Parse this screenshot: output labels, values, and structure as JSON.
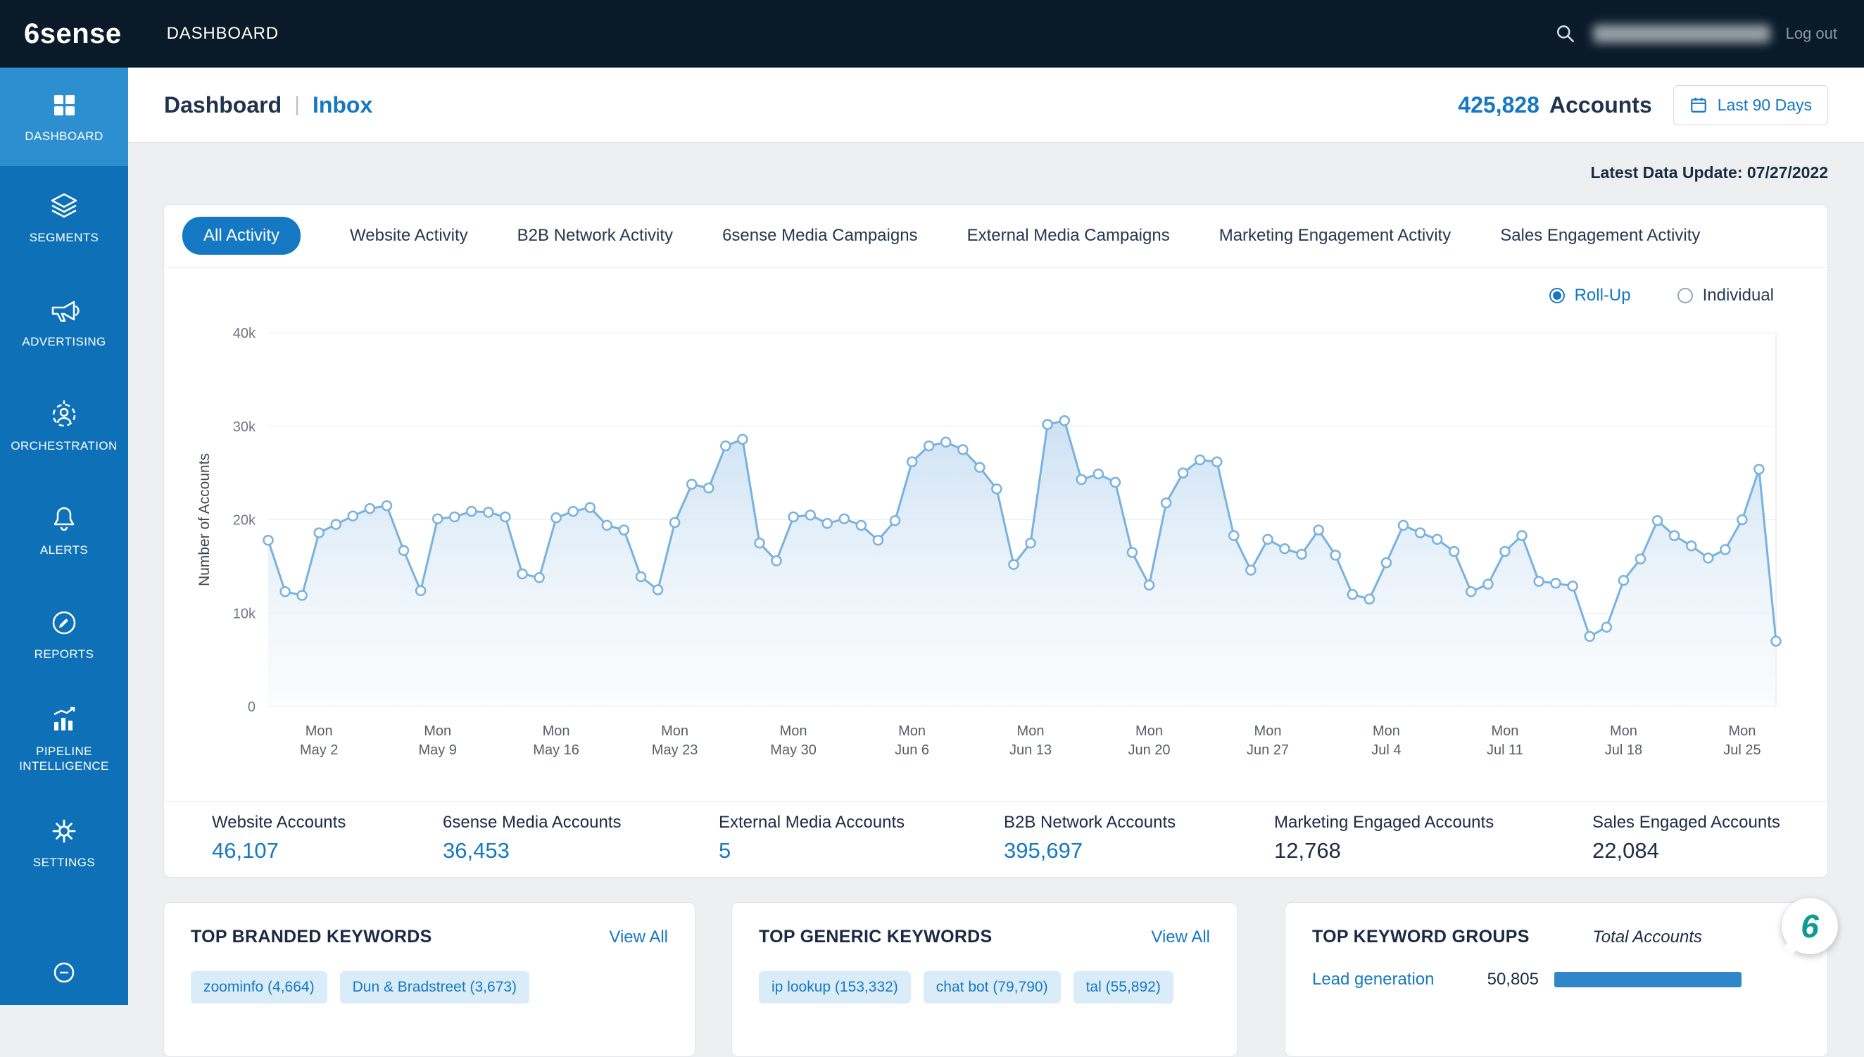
{
  "topbar": {
    "logo": "6sense",
    "nav_label": "DASHBOARD",
    "logout": "Log out"
  },
  "sidebar": {
    "items": [
      {
        "label": "DASHBOARD",
        "active": true
      },
      {
        "label": "SEGMENTS"
      },
      {
        "label": "ADVERTISING"
      },
      {
        "label": "ORCHESTRATION"
      },
      {
        "label": "ALERTS"
      },
      {
        "label": "REPORTS"
      },
      {
        "label": "PIPELINE INTELLIGENCE"
      },
      {
        "label": "SETTINGS"
      }
    ]
  },
  "header": {
    "title": "Dashboard",
    "divider": "|",
    "inbox_link": "Inbox",
    "accounts_count": "425,828",
    "accounts_label": "Accounts",
    "date_range_button": "Last 90 Days",
    "latest_update": "Latest Data Update: 07/27/2022"
  },
  "activity_card": {
    "tabs": [
      {
        "label": "All Activity",
        "active": true
      },
      {
        "label": "Website Activity"
      },
      {
        "label": "B2B Network Activity"
      },
      {
        "label": "6sense Media Campaigns"
      },
      {
        "label": "External Media Campaigns"
      },
      {
        "label": "Marketing Engagement Activity"
      },
      {
        "label": "Sales Engagement Activity"
      }
    ],
    "view_toggle": {
      "rollup": "Roll-Up",
      "individual": "Individual",
      "selected": "Roll-Up"
    },
    "stats": [
      {
        "label": "Website Accounts",
        "value": "46,107",
        "link": true
      },
      {
        "label": "6sense Media Accounts",
        "value": "36,453",
        "link": true
      },
      {
        "label": "External Media Accounts",
        "value": "5",
        "link": true
      },
      {
        "label": "B2B Network Accounts",
        "value": "395,697",
        "link": true
      },
      {
        "label": "Marketing Engaged Accounts",
        "value": "12,768",
        "link": false
      },
      {
        "label": "Sales Engaged Accounts",
        "value": "22,084",
        "link": false
      }
    ]
  },
  "chart_data": {
    "type": "area",
    "ylabel": "Number of Accounts",
    "ylim": [
      0,
      40000
    ],
    "y_ticks": [
      "0",
      "10k",
      "20k",
      "30k",
      "40k"
    ],
    "y_tick_values": [
      0,
      10000,
      20000,
      30000,
      40000
    ],
    "x_start_date": "2022-04-29",
    "x_step_days": 1,
    "x_tick_indices": [
      3,
      10,
      17,
      24,
      31,
      38,
      45,
      52,
      59,
      66,
      73,
      80,
      87
    ],
    "x_tick_labels": [
      [
        "Mon",
        "May 2"
      ],
      [
        "Mon",
        "May 9"
      ],
      [
        "Mon",
        "May 16"
      ],
      [
        "Mon",
        "May 23"
      ],
      [
        "Mon",
        "May 30"
      ],
      [
        "Mon",
        "Jun 6"
      ],
      [
        "Mon",
        "Jun 13"
      ],
      [
        "Mon",
        "Jun 20"
      ],
      [
        "Mon",
        "Jun 27"
      ],
      [
        "Mon",
        "Jul 4"
      ],
      [
        "Mon",
        "Jul 11"
      ],
      [
        "Mon",
        "Jul 18"
      ],
      [
        "Mon",
        "Jul 25"
      ]
    ],
    "grid": true,
    "legend": "none",
    "values": [
      17800,
      12300,
      11900,
      18600,
      19500,
      20400,
      21200,
      21500,
      16700,
      12400,
      20100,
      20300,
      20900,
      20800,
      20300,
      14200,
      13800,
      20200,
      20900,
      21300,
      19400,
      18900,
      13900,
      12500,
      19700,
      23800,
      23400,
      27900,
      28600,
      17500,
      15600,
      20300,
      20500,
      19600,
      20100,
      19400,
      17800,
      19900,
      26200,
      27900,
      28300,
      27500,
      25600,
      23300,
      15200,
      17500,
      30200,
      30600,
      24300,
      24900,
      24000,
      16500,
      13000,
      21800,
      25000,
      26400,
      26200,
      18300,
      14600,
      17900,
      16900,
      16300,
      18900,
      16200,
      12000,
      11500,
      15400,
      19400,
      18600,
      17900,
      16600,
      12300,
      13100,
      16600,
      18300,
      13400,
      13200,
      12900,
      7500,
      8500,
      13500,
      15800,
      19900,
      18300,
      17200,
      15900,
      16800,
      20000,
      25400,
      7000
    ]
  },
  "keyword_cards": {
    "branded": {
      "title": "TOP BRANDED KEYWORDS",
      "view_all": "View All",
      "chips": [
        "zoominfo (4,664)",
        "Dun & Bradstreet (3,673)"
      ]
    },
    "generic": {
      "title": "TOP GENERIC KEYWORDS",
      "view_all": "View All",
      "chips": [
        "ip lookup (153,332)",
        "chat bot (79,790)",
        "tal (55,892)"
      ]
    },
    "groups": {
      "title": "TOP KEYWORD GROUPS",
      "column_header": "Total Accounts",
      "rows": [
        {
          "label": "Lead generation",
          "value": "50,805"
        }
      ]
    }
  },
  "chat_widget": {
    "logo_glyph": "6"
  },
  "colors": {
    "accent": "#1578c2",
    "topbar_bg": "#0a1a28",
    "sidebar_bg": "#0e71b8",
    "sidebar_active_bg": "#2e8fd0",
    "chart_line": "#79b2de",
    "chip_bg": "#dbecf9",
    "bar_fill": "#2f86c9"
  }
}
